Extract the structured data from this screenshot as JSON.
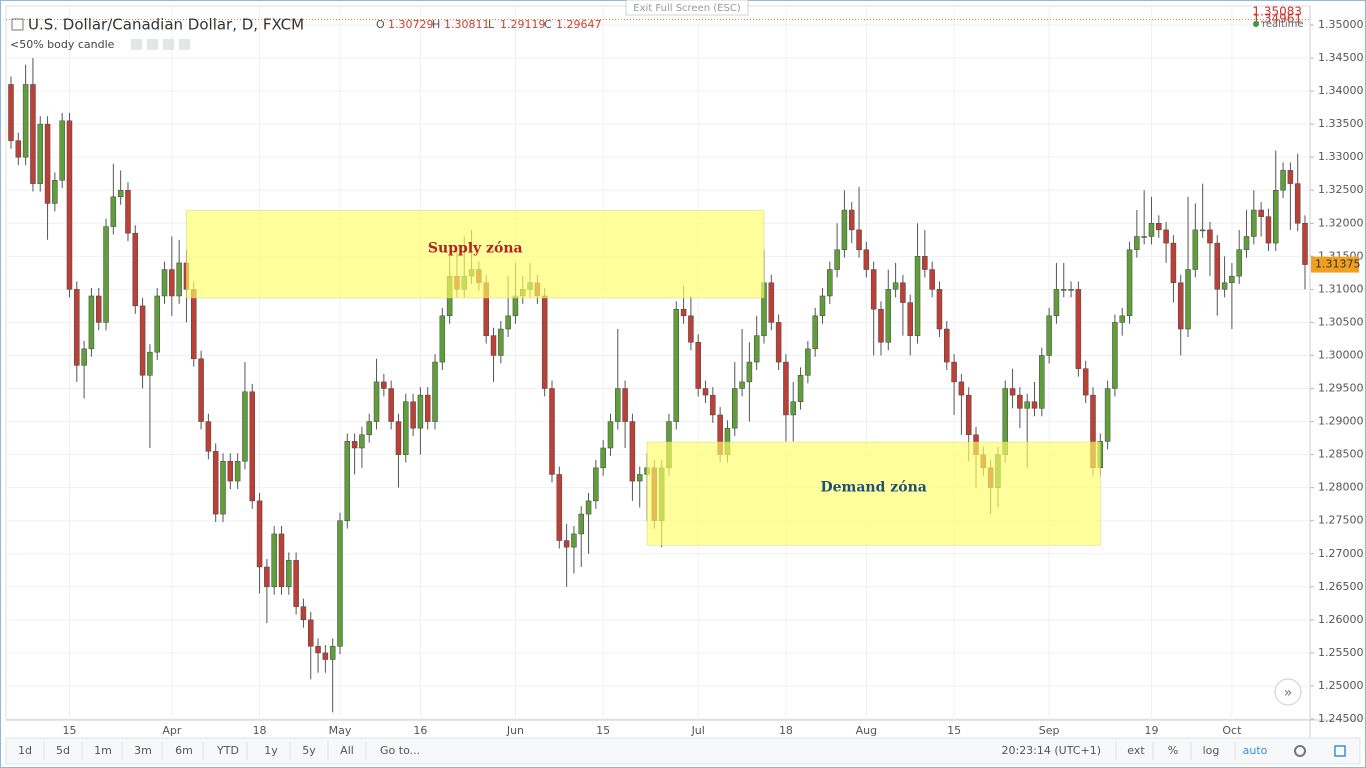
{
  "chart_data": {
    "type": "candlestick",
    "title": "U.S. Dollar/Canadian Dollar, D, FXCM",
    "legend": [
      {
        "key": "O",
        "value": 1.30729
      },
      {
        "key": "H",
        "value": 1.30811
      },
      {
        "key": "L",
        "value": 1.29119
      },
      {
        "key": "C",
        "value": 1.29647
      }
    ],
    "indicator": "<50% body candle",
    "fullscreen_hint": "Exit Full Screen (ESC)",
    "alerts": [
      1.35083,
      1.34961
    ],
    "status": "realtime",
    "up_color": "#5f9e3a",
    "down_color": "#bd4036",
    "wick_color": "#555555",
    "grid": true,
    "ylim": [
      1.24485,
      1.35287
    ],
    "yticks": [
      {
        "value": 1.245,
        "label": "1.24500"
      },
      {
        "value": 1.25,
        "label": "1.25000"
      },
      {
        "value": 1.255,
        "label": "1.25500"
      },
      {
        "value": 1.26,
        "label": "1.26000"
      },
      {
        "value": 1.265,
        "label": "1.26500"
      },
      {
        "value": 1.27,
        "label": "1.27000"
      },
      {
        "value": 1.275,
        "label": "1.27500"
      },
      {
        "value": 1.28,
        "label": "1.28000"
      },
      {
        "value": 1.285,
        "label": "1.28500"
      },
      {
        "value": 1.29,
        "label": "1.29000"
      },
      {
        "value": 1.295,
        "label": "1.29500"
      },
      {
        "value": 1.3,
        "label": "1.30000"
      },
      {
        "value": 1.305,
        "label": "1.30500"
      },
      {
        "value": 1.31,
        "label": "1.31000"
      },
      {
        "value": 1.315,
        "label": "1.31500"
      },
      {
        "value": 1.32,
        "label": "1.32000"
      },
      {
        "value": 1.325,
        "label": "1.32500"
      },
      {
        "value": 1.33,
        "label": "1.33000"
      },
      {
        "value": 1.335,
        "label": "1.33500"
      },
      {
        "value": 1.34,
        "label": "1.34000"
      },
      {
        "value": 1.345,
        "label": "1.34500"
      },
      {
        "value": 1.35,
        "label": "1.35000"
      }
    ],
    "categories": [
      null,
      null,
      null,
      null,
      null,
      null,
      null,
      null,
      "15",
      null,
      null,
      null,
      null,
      null,
      null,
      null,
      null,
      null,
      null,
      null,
      null,
      null,
      "Apr",
      null,
      null,
      null,
      null,
      null,
      null,
      null,
      null,
      null,
      null,
      null,
      "18",
      null,
      null,
      null,
      null,
      null,
      null,
      null,
      null,
      null,
      null,
      "May",
      null,
      null,
      null,
      null,
      null,
      null,
      null,
      null,
      null,
      null,
      "16",
      null,
      null,
      null,
      null,
      null,
      null,
      null,
      null,
      null,
      null,
      null,
      null,
      "Jun",
      null,
      null,
      null,
      null,
      null,
      null,
      null,
      null,
      null,
      null,
      null,
      "15",
      null,
      null,
      null,
      null,
      null,
      null,
      null,
      null,
      null,
      null,
      null,
      null,
      "Jul",
      null,
      null,
      null,
      null,
      null,
      null,
      null,
      null,
      null,
      null,
      null,
      "18",
      null,
      null,
      null,
      null,
      null,
      null,
      null,
      null,
      null,
      null,
      "Aug",
      null,
      null,
      null,
      null,
      null,
      null,
      null,
      null,
      null,
      null,
      null,
      "15",
      null,
      null,
      null,
      null,
      null,
      null,
      null,
      null,
      null,
      null,
      null,
      null,
      "Sep",
      null,
      null,
      null,
      null,
      null,
      null,
      null,
      null,
      null,
      null,
      null,
      null,
      null,
      "19",
      null,
      null,
      null,
      null,
      null,
      null,
      null,
      null,
      null,
      null,
      "Oct",
      null,
      null,
      null,
      null,
      null,
      null,
      null,
      null,
      null,
      null
    ],
    "ohlc": [
      [
        1.341,
        1.3422,
        1.3313,
        1.3325
      ],
      [
        1.3325,
        1.3337,
        1.3288,
        1.33
      ],
      [
        1.33,
        1.344,
        1.3288,
        1.341
      ],
      [
        1.341,
        1.345,
        1.3248,
        1.326
      ],
      [
        1.326,
        1.3362,
        1.3248,
        1.335
      ],
      [
        1.335,
        1.3362,
        1.3175,
        1.323
      ],
      [
        1.323,
        1.3277,
        1.3218,
        1.3265
      ],
      [
        1.3265,
        1.3367,
        1.3253,
        1.3355
      ],
      [
        1.3355,
        1.3367,
        1.3088,
        1.31
      ],
      [
        1.31,
        1.3112,
        1.296,
        1.2985
      ],
      [
        1.2985,
        1.3022,
        1.2935,
        1.301
      ],
      [
        1.301,
        1.3102,
        1.2998,
        1.309
      ],
      [
        1.309,
        1.3102,
        1.3038,
        1.305
      ],
      [
        1.305,
        1.3207,
        1.3038,
        1.3195
      ],
      [
        1.3195,
        1.329,
        1.3183,
        1.324
      ],
      [
        1.324,
        1.328,
        1.3228,
        1.325
      ],
      [
        1.325,
        1.3262,
        1.3173,
        1.3185
      ],
      [
        1.3185,
        1.3197,
        1.3063,
        1.3075
      ],
      [
        1.3075,
        1.3087,
        1.295,
        1.297
      ],
      [
        1.297,
        1.3017,
        1.286,
        1.3005
      ],
      [
        1.3005,
        1.3102,
        1.2993,
        1.309
      ],
      [
        1.309,
        1.3142,
        1.3078,
        1.313
      ],
      [
        1.313,
        1.318,
        1.306,
        1.309
      ],
      [
        1.309,
        1.3175,
        1.3078,
        1.314
      ],
      [
        1.314,
        1.316,
        1.305,
        1.31
      ],
      [
        1.31,
        1.3112,
        1.2983,
        1.2995
      ],
      [
        1.2995,
        1.3007,
        1.2888,
        1.29
      ],
      [
        1.29,
        1.2912,
        1.2843,
        1.2855
      ],
      [
        1.2855,
        1.2867,
        1.2748,
        1.276
      ],
      [
        1.276,
        1.2852,
        1.2748,
        1.284
      ],
      [
        1.284,
        1.2852,
        1.2798,
        1.281
      ],
      [
        1.281,
        1.2852,
        1.2798,
        1.284
      ],
      [
        1.284,
        1.299,
        1.2828,
        1.2945
      ],
      [
        1.2945,
        1.2957,
        1.2768,
        1.278
      ],
      [
        1.278,
        1.2792,
        1.264,
        1.268
      ],
      [
        1.268,
        1.2692,
        1.2595,
        1.265
      ],
      [
        1.265,
        1.2742,
        1.2638,
        1.273
      ],
      [
        1.273,
        1.2742,
        1.2638,
        1.265
      ],
      [
        1.265,
        1.2702,
        1.2638,
        1.269
      ],
      [
        1.269,
        1.2702,
        1.2608,
        1.262
      ],
      [
        1.262,
        1.2632,
        1.2588,
        1.26
      ],
      [
        1.26,
        1.2612,
        1.251,
        1.256
      ],
      [
        1.256,
        1.2572,
        1.252,
        1.255
      ],
      [
        1.255,
        1.2562,
        1.252,
        1.254
      ],
      [
        1.254,
        1.2572,
        1.246,
        1.256
      ],
      [
        1.256,
        1.2762,
        1.2548,
        1.275
      ],
      [
        1.275,
        1.2882,
        1.2738,
        1.287
      ],
      [
        1.287,
        1.2882,
        1.282,
        1.286
      ],
      [
        1.286,
        1.2892,
        1.283,
        1.288
      ],
      [
        1.288,
        1.2912,
        1.2868,
        1.29
      ],
      [
        1.29,
        1.2995,
        1.2888,
        1.296
      ],
      [
        1.296,
        1.2972,
        1.2938,
        1.295
      ],
      [
        1.295,
        1.2962,
        1.2888,
        1.29
      ],
      [
        1.29,
        1.2912,
        1.28,
        1.285
      ],
      [
        1.285,
        1.2942,
        1.2838,
        1.293
      ],
      [
        1.293,
        1.2942,
        1.2878,
        1.289
      ],
      [
        1.289,
        1.2952,
        1.285,
        1.294
      ],
      [
        1.294,
        1.2952,
        1.2888,
        1.29
      ],
      [
        1.29,
        1.3002,
        1.2888,
        1.299
      ],
      [
        1.299,
        1.3072,
        1.2978,
        1.306
      ],
      [
        1.306,
        1.315,
        1.3048,
        1.312
      ],
      [
        1.312,
        1.316,
        1.3088,
        1.31
      ],
      [
        1.31,
        1.318,
        1.3088,
        1.312
      ],
      [
        1.312,
        1.319,
        1.3108,
        1.313
      ],
      [
        1.313,
        1.3142,
        1.3098,
        1.311
      ],
      [
        1.311,
        1.3122,
        1.3018,
        1.303
      ],
      [
        1.303,
        1.3042,
        1.296,
        1.3
      ],
      [
        1.3,
        1.3052,
        1.2988,
        1.304
      ],
      [
        1.304,
        1.312,
        1.3028,
        1.306
      ],
      [
        1.306,
        1.314,
        1.3048,
        1.309
      ],
      [
        1.309,
        1.312,
        1.3078,
        1.31
      ],
      [
        1.31,
        1.314,
        1.3088,
        1.311
      ],
      [
        1.311,
        1.3122,
        1.3078,
        1.309
      ],
      [
        1.309,
        1.3102,
        1.2938,
        1.295
      ],
      [
        1.295,
        1.2962,
        1.2808,
        1.282
      ],
      [
        1.282,
        1.2832,
        1.2708,
        1.272
      ],
      [
        1.272,
        1.2745,
        1.265,
        1.271
      ],
      [
        1.271,
        1.2742,
        1.267,
        1.273
      ],
      [
        1.273,
        1.2772,
        1.268,
        1.276
      ],
      [
        1.276,
        1.2792,
        1.27,
        1.278
      ],
      [
        1.278,
        1.2842,
        1.2768,
        1.283
      ],
      [
        1.283,
        1.2872,
        1.2818,
        1.286
      ],
      [
        1.286,
        1.2912,
        1.2848,
        1.29
      ],
      [
        1.29,
        1.304,
        1.2888,
        1.295
      ],
      [
        1.295,
        1.2962,
        1.286,
        1.29
      ],
      [
        1.29,
        1.2912,
        1.278,
        1.281
      ],
      [
        1.281,
        1.2832,
        1.277,
        1.282
      ],
      [
        1.282,
        1.2852,
        1.275,
        1.283
      ],
      [
        1.283,
        1.2842,
        1.2738,
        1.275
      ],
      [
        1.275,
        1.2842,
        1.271,
        1.283
      ],
      [
        1.283,
        1.2912,
        1.2818,
        1.29
      ],
      [
        1.29,
        1.3082,
        1.2888,
        1.307
      ],
      [
        1.307,
        1.3105,
        1.3048,
        1.306
      ],
      [
        1.306,
        1.309,
        1.3008,
        1.302
      ],
      [
        1.302,
        1.3032,
        1.2938,
        1.295
      ],
      [
        1.295,
        1.2962,
        1.2928,
        1.294
      ],
      [
        1.294,
        1.2952,
        1.2898,
        1.291
      ],
      [
        1.291,
        1.2922,
        1.2838,
        1.285
      ],
      [
        1.285,
        1.2902,
        1.2838,
        1.289
      ],
      [
        1.289,
        1.299,
        1.2878,
        1.295
      ],
      [
        1.295,
        1.304,
        1.2938,
        1.296
      ],
      [
        1.296,
        1.302,
        1.29,
        1.299
      ],
      [
        1.299,
        1.306,
        1.2978,
        1.303
      ],
      [
        1.303,
        1.316,
        1.3018,
        1.311
      ],
      [
        1.311,
        1.3122,
        1.3038,
        1.305
      ],
      [
        1.305,
        1.3062,
        1.2978,
        1.299
      ],
      [
        1.299,
        1.3002,
        1.287,
        1.291
      ],
      [
        1.291,
        1.296,
        1.287,
        1.293
      ],
      [
        1.293,
        1.2982,
        1.2918,
        1.297
      ],
      [
        1.297,
        1.3022,
        1.2958,
        1.301
      ],
      [
        1.301,
        1.3072,
        1.2998,
        1.306
      ],
      [
        1.306,
        1.3102,
        1.3048,
        1.309
      ],
      [
        1.309,
        1.3142,
        1.3078,
        1.313
      ],
      [
        1.313,
        1.32,
        1.3118,
        1.316
      ],
      [
        1.316,
        1.325,
        1.3148,
        1.322
      ],
      [
        1.322,
        1.3232,
        1.317,
        1.319
      ],
      [
        1.319,
        1.3255,
        1.3148,
        1.316
      ],
      [
        1.316,
        1.3172,
        1.3118,
        1.313
      ],
      [
        1.313,
        1.3142,
        1.3,
        1.307
      ],
      [
        1.307,
        1.3082,
        1.3,
        1.302
      ],
      [
        1.302,
        1.313,
        1.3008,
        1.31
      ],
      [
        1.31,
        1.314,
        1.3088,
        1.311
      ],
      [
        1.311,
        1.3122,
        1.303,
        1.308
      ],
      [
        1.308,
        1.3092,
        1.3,
        1.303
      ],
      [
        1.303,
        1.32,
        1.3018,
        1.315
      ],
      [
        1.315,
        1.319,
        1.3118,
        1.313
      ],
      [
        1.313,
        1.3142,
        1.3088,
        1.31
      ],
      [
        1.31,
        1.3112,
        1.3028,
        1.304
      ],
      [
        1.304,
        1.3052,
        1.2978,
        1.299
      ],
      [
        1.299,
        1.3002,
        1.291,
        1.296
      ],
      [
        1.296,
        1.2972,
        1.288,
        1.294
      ],
      [
        1.294,
        1.2952,
        1.284,
        1.288
      ],
      [
        1.288,
        1.2892,
        1.28,
        1.285
      ],
      [
        1.285,
        1.2862,
        1.2818,
        1.283
      ],
      [
        1.283,
        1.2842,
        1.276,
        1.28
      ],
      [
        1.28,
        1.2862,
        1.277,
        1.285
      ],
      [
        1.285,
        1.2962,
        1.2838,
        1.295
      ],
      [
        1.295,
        1.298,
        1.292,
        1.294
      ],
      [
        1.294,
        1.2952,
        1.289,
        1.292
      ],
      [
        1.292,
        1.2942,
        1.283,
        1.293
      ],
      [
        1.293,
        1.296,
        1.2908,
        1.292
      ],
      [
        1.292,
        1.3012,
        1.2908,
        1.3
      ],
      [
        1.3,
        1.3072,
        1.2988,
        1.306
      ],
      [
        1.306,
        1.314,
        1.3048,
        1.31
      ],
      [
        1.31,
        1.314,
        1.3088,
        1.31
      ],
      [
        1.31,
        1.3112,
        1.3088,
        1.31
      ],
      [
        1.31,
        1.3112,
        1.2968,
        1.298
      ],
      [
        1.298,
        1.2992,
        1.2928,
        1.294
      ],
      [
        1.294,
        1.2952,
        1.2818,
        1.283
      ],
      [
        1.283,
        1.2882,
        1.2818,
        1.287
      ],
      [
        1.287,
        1.2962,
        1.2858,
        1.295
      ],
      [
        1.295,
        1.3062,
        1.2938,
        1.305
      ],
      [
        1.305,
        1.3072,
        1.303,
        1.306
      ],
      [
        1.306,
        1.3172,
        1.3048,
        1.316
      ],
      [
        1.316,
        1.322,
        1.3148,
        1.318
      ],
      [
        1.318,
        1.325,
        1.3168,
        1.318
      ],
      [
        1.318,
        1.324,
        1.3168,
        1.32
      ],
      [
        1.32,
        1.3212,
        1.3178,
        1.319
      ],
      [
        1.319,
        1.3202,
        1.314,
        1.317
      ],
      [
        1.317,
        1.3182,
        1.308,
        1.311
      ],
      [
        1.311,
        1.3122,
        1.3,
        1.304
      ],
      [
        1.304,
        1.324,
        1.3028,
        1.313
      ],
      [
        1.313,
        1.323,
        1.3118,
        1.319
      ],
      [
        1.319,
        1.326,
        1.3178,
        1.319
      ],
      [
        1.319,
        1.3202,
        1.312,
        1.317
      ],
      [
        1.317,
        1.3182,
        1.306,
        1.31
      ],
      [
        1.31,
        1.315,
        1.3088,
        1.311
      ],
      [
        1.311,
        1.314,
        1.304,
        1.312
      ],
      [
        1.312,
        1.319,
        1.3108,
        1.316
      ],
      [
        1.316,
        1.322,
        1.3148,
        1.318
      ],
      [
        1.318,
        1.325,
        1.3168,
        1.322
      ],
      [
        1.322,
        1.3232,
        1.318,
        1.321
      ],
      [
        1.321,
        1.3222,
        1.3158,
        1.317
      ],
      [
        1.317,
        1.331,
        1.3158,
        1.325
      ],
      [
        1.325,
        1.3292,
        1.3238,
        1.328
      ],
      [
        1.328,
        1.3292,
        1.319,
        1.326
      ],
      [
        1.326,
        1.3305,
        1.3188,
        1.32
      ],
      [
        1.32,
        1.3212,
        1.31,
        1.31375
      ]
    ],
    "zones": [
      {
        "label": "Supply zóna",
        "low": 1.3087,
        "high": 1.3219,
        "start": 24,
        "end": 103,
        "color": "#ffff66",
        "label_color": "#b52020"
      },
      {
        "label": "Demand zóna",
        "low": 1.2713,
        "high": 1.2869,
        "start": 87,
        "end": 149,
        "color": "#ffff66",
        "label_color": "#1f4f7a"
      }
    ],
    "toolbar": {
      "ranges": [
        "1d",
        "5d",
        "1m",
        "3m",
        "6m",
        "YTD",
        "1y",
        "5y",
        "All"
      ],
      "goto": "Go to...",
      "time": "20:23:14 (UTC+1)",
      "options": [
        "ext",
        "%",
        "log",
        "auto"
      ]
    }
  }
}
